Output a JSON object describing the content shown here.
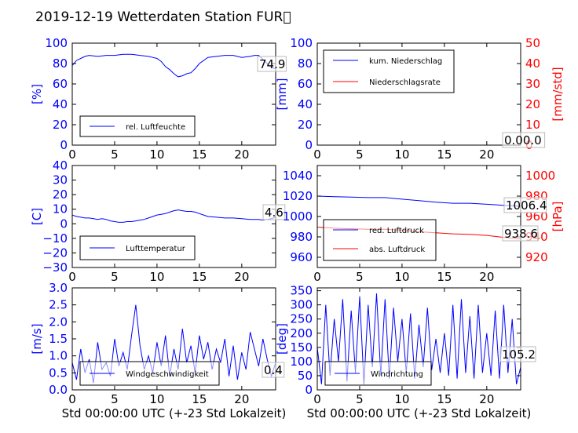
{
  "title": "2019-12-19 Wetterdaten Station FUR\u0000",
  "colors": {
    "primary": "#0000ff",
    "secondary": "#ff0000",
    "axis": "#000000"
  },
  "chart_data": [
    {
      "id": "humidity",
      "type": "line",
      "xlim": [
        0,
        24
      ],
      "ylim": [
        0,
        100
      ],
      "xticks": [
        "0",
        "5",
        "10",
        "15",
        "20"
      ],
      "yticks": [
        "0",
        "20",
        "40",
        "60",
        "80",
        "100"
      ],
      "ylabel": "[%]",
      "xlabel": "",
      "legend": {
        "placement": "lower-left"
      },
      "value_label": "74.9",
      "series": [
        {
          "name": "rel. Luftfeuchte",
          "color": "#0000ff",
          "axis": "left",
          "x": [
            0,
            0.5,
            1,
            1.5,
            2,
            3,
            4,
            5,
            6,
            7,
            8,
            9,
            9.5,
            10,
            10.5,
            11,
            11.5,
            12,
            12.5,
            13,
            13.5,
            14,
            14.5,
            15,
            16,
            17,
            18,
            19,
            20,
            21,
            21.5,
            22,
            22.5,
            23,
            23.5,
            24
          ],
          "y": [
            78,
            83,
            85,
            87,
            88,
            87,
            88,
            88,
            89,
            89,
            88,
            87,
            86,
            85,
            82,
            77,
            74,
            70,
            67,
            68,
            70,
            71,
            75,
            80,
            86,
            87,
            88,
            88,
            86,
            87,
            88,
            88,
            84,
            80,
            76,
            75
          ]
        }
      ]
    },
    {
      "id": "precipitation",
      "type": "line",
      "xlim": [
        0,
        24
      ],
      "ylim": [
        0,
        100
      ],
      "y2lim": [
        0,
        50
      ],
      "xticks": [
        "0",
        "5",
        "10",
        "15",
        "20"
      ],
      "yticks": [
        "0",
        "20",
        "40",
        "60",
        "80",
        "100"
      ],
      "y2ticks": [
        "0",
        "10",
        "20",
        "30",
        "40",
        "50"
      ],
      "ylabel": "[mm]",
      "y2label": "[mm/std]",
      "legend": {
        "placement": "upper-left"
      },
      "value_label": "0.00.0",
      "series": [
        {
          "name": "kum. Niederschlag",
          "color": "#0000ff",
          "axis": "left",
          "x": [
            0,
            24
          ],
          "y": [
            0,
            0
          ]
        },
        {
          "name": "Niederschlagsrate",
          "color": "#ff0000",
          "axis": "right",
          "x": [
            0,
            24
          ],
          "y": [
            0,
            0
          ]
        }
      ]
    },
    {
      "id": "temperature",
      "type": "line",
      "xlim": [
        0,
        24
      ],
      "ylim": [
        -30,
        40
      ],
      "xticks": [
        "0",
        "5",
        "10",
        "15",
        "20"
      ],
      "yticks": [
        "−30",
        "−20",
        "−10",
        "0",
        "10",
        "20",
        "30",
        "40"
      ],
      "ylabel": "[C]",
      "legend": {
        "placement": "lower-left"
      },
      "value_label": "4.6",
      "series": [
        {
          "name": "Lufttemperatur",
          "color": "#0000ff",
          "axis": "left",
          "x": [
            0,
            0.5,
            1,
            1.5,
            2,
            2.5,
            3,
            3.5,
            4,
            4.5,
            5,
            5.5,
            6,
            6.5,
            7,
            7.5,
            8,
            8.5,
            9,
            9.5,
            10,
            10.5,
            11,
            11.5,
            12,
            12.5,
            13,
            13.5,
            14,
            14.5,
            15,
            15.5,
            16,
            17,
            18,
            19,
            20,
            21,
            22,
            22.5,
            23,
            23.5,
            24
          ],
          "y": [
            6,
            5,
            4.5,
            4,
            4,
            3.5,
            3,
            3.5,
            3,
            2,
            1.5,
            1,
            1,
            1.5,
            1.5,
            2,
            2.5,
            3,
            4,
            5,
            6,
            6.5,
            7,
            8,
            9,
            9.5,
            9,
            8.5,
            8.5,
            8,
            7,
            6,
            5,
            4.5,
            4,
            4,
            3.5,
            3,
            3,
            2.5,
            3,
            3.5,
            4.5
          ]
        }
      ]
    },
    {
      "id": "pressure",
      "type": "line",
      "xlim": [
        0,
        24
      ],
      "ylim": [
        950,
        1050
      ],
      "y2lim": [
        910,
        1010
      ],
      "xticks": [
        "0",
        "5",
        "10",
        "15",
        "20"
      ],
      "yticks": [
        "960",
        "980",
        "1000",
        "1020",
        "1040"
      ],
      "y2ticks": [
        "920",
        "940",
        "960",
        "980",
        "1000"
      ],
      "ylabel": "",
      "y2label": "[hPa]",
      "legend": {
        "placement": "lower-left"
      },
      "value_labels": [
        "1006.4",
        "938.6"
      ],
      "series": [
        {
          "name": "red. Luftdruck",
          "color": "#0000ff",
          "axis": "left",
          "x": [
            0,
            2,
            4,
            6,
            8,
            10,
            12,
            14,
            16,
            18,
            20,
            22,
            24
          ],
          "y": [
            1020,
            1019.5,
            1019,
            1018.5,
            1018.5,
            1017,
            1015.5,
            1014,
            1013,
            1013,
            1012,
            1011,
            1010
          ]
        },
        {
          "name": "abs. Luftdruck",
          "color": "#ff0000",
          "axis": "right",
          "x": [
            0,
            2,
            4,
            6,
            8,
            10,
            12,
            14,
            16,
            18,
            20,
            22,
            24
          ],
          "y": [
            949.5,
            948.5,
            948,
            947.5,
            947.5,
            946.5,
            945,
            944,
            943,
            942.5,
            941.5,
            939.5,
            938
          ]
        }
      ]
    },
    {
      "id": "wind-speed",
      "type": "line",
      "xlim": [
        0,
        24
      ],
      "ylim": [
        0,
        3
      ],
      "xticks": [
        "0",
        "5",
        "10",
        "15",
        "20"
      ],
      "yticks": [
        "0.0",
        "0.5",
        "1.0",
        "1.5",
        "2.0",
        "2.5",
        "3.0"
      ],
      "ylabel": "[m/s]",
      "xlabel": "Std 00:00:00 UTC (+-23 Std Lokalzeit)",
      "legend": {
        "placement": "lower-left"
      },
      "value_label": "0.4",
      "series": [
        {
          "name": "Windgeschwindigkeit",
          "color": "#0000ff",
          "axis": "left",
          "x": [
            0,
            0.5,
            1,
            1.5,
            2,
            2.5,
            3,
            3.5,
            4,
            4.5,
            5,
            5.5,
            6,
            6.5,
            7,
            7.5,
            8,
            8.5,
            9,
            9.5,
            10,
            10.5,
            11,
            11.5,
            12,
            12.5,
            13,
            13.5,
            14,
            14.5,
            15,
            15.5,
            16,
            16.5,
            17,
            17.5,
            18,
            18.5,
            19,
            19.5,
            20,
            20.5,
            21,
            21.5,
            22,
            22.5,
            23,
            23.5,
            24
          ],
          "y": [
            0.8,
            0.3,
            1.2,
            0.5,
            0.9,
            0.2,
            1.4,
            0.6,
            0.8,
            0.4,
            1.5,
            0.7,
            1.1,
            0.6,
            1.6,
            2.5,
            1.3,
            0.6,
            1.0,
            0.5,
            1.4,
            0.7,
            1.6,
            0.4,
            1.2,
            0.6,
            1.8,
            0.8,
            1.3,
            0.5,
            1.6,
            0.9,
            1.4,
            0.6,
            1.2,
            0.8,
            1.5,
            0.4,
            1.3,
            0.3,
            1.1,
            0.6,
            1.7,
            1.2,
            0.7,
            1.5,
            0.9,
            0.4,
            0.8
          ]
        }
      ]
    },
    {
      "id": "wind-direction",
      "type": "line",
      "xlim": [
        0,
        24
      ],
      "ylim": [
        0,
        360
      ],
      "xticks": [
        "0",
        "5",
        "10",
        "15",
        "20"
      ],
      "yticks": [
        "0",
        "50",
        "100",
        "150",
        "200",
        "250",
        "300",
        "350"
      ],
      "ylabel": "[deg]",
      "xlabel": "Std 00:00:00 UTC (+-23 Std Lokalzeit)",
      "legend": {
        "placement": "lower-left"
      },
      "value_label": "105.2",
      "series": [
        {
          "name": "Windrichtung",
          "color": "#0000ff",
          "axis": "left",
          "x": [
            0,
            0.5,
            1,
            1.5,
            2,
            2.5,
            3,
            3.5,
            4,
            4.5,
            5,
            5.5,
            6,
            6.5,
            7,
            7.5,
            8,
            8.5,
            9,
            9.5,
            10,
            10.5,
            11,
            11.5,
            12,
            12.5,
            13,
            13.5,
            14,
            14.5,
            15,
            15.5,
            16,
            16.5,
            17,
            17.5,
            18,
            18.5,
            19,
            19.5,
            20,
            20.5,
            21,
            21.5,
            22,
            22.5,
            23,
            23.5,
            24
          ],
          "y": [
            150,
            20,
            300,
            50,
            250,
            100,
            320,
            30,
            280,
            60,
            330,
            20,
            300,
            80,
            340,
            50,
            320,
            40,
            290,
            100,
            250,
            60,
            270,
            40,
            230,
            80,
            290,
            70,
            180,
            60,
            200,
            50,
            300,
            40,
            320,
            60,
            260,
            40,
            300,
            60,
            200,
            50,
            280,
            40,
            300,
            60,
            250,
            20,
            80
          ]
        }
      ]
    }
  ]
}
